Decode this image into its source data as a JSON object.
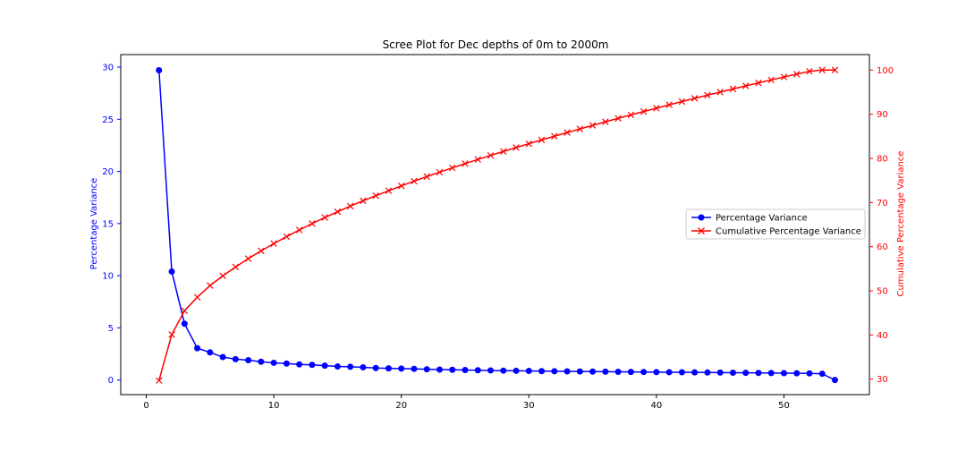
{
  "chart_data": {
    "type": "line",
    "title": "Scree Plot for Dec depths of 0m to 2000m",
    "xlabel": "",
    "ylabel": "Percentage Variance",
    "y2label": "Cumulative Percentage Variance",
    "xlim": [
      -2,
      56.7
    ],
    "ylim": [
      -1.4,
      31.2
    ],
    "y2lim": [
      26.5,
      103.5
    ],
    "xticks": [
      0,
      10,
      20,
      30,
      40,
      50
    ],
    "yticks": [
      0,
      5,
      10,
      15,
      20,
      25,
      30
    ],
    "y2ticks": [
      30,
      40,
      50,
      60,
      70,
      80,
      90,
      100
    ],
    "grid": false,
    "legend_position": "center-right",
    "colors": {
      "primary": "#0000ff",
      "secondary": "#ff0000",
      "axis": "#000000"
    },
    "x": [
      1,
      2,
      3,
      4,
      5,
      6,
      7,
      8,
      9,
      10,
      11,
      12,
      13,
      14,
      15,
      16,
      17,
      18,
      19,
      20,
      21,
      22,
      23,
      24,
      25,
      26,
      27,
      28,
      29,
      30,
      31,
      32,
      33,
      34,
      35,
      36,
      37,
      38,
      39,
      40,
      41,
      42,
      43,
      44,
      45,
      46,
      47,
      48,
      49,
      50,
      51,
      52,
      53,
      54
    ],
    "series": [
      {
        "name": "Percentage Variance",
        "axis": "left",
        "color": "#0000ff",
        "marker": "circle",
        "values": [
          29.7,
          10.4,
          5.4,
          3.05,
          2.65,
          2.2,
          2.0,
          1.9,
          1.75,
          1.65,
          1.58,
          1.5,
          1.45,
          1.38,
          1.3,
          1.27,
          1.22,
          1.15,
          1.12,
          1.1,
          1.07,
          1.03,
          1.0,
          0.98,
          0.96,
          0.94,
          0.92,
          0.9,
          0.88,
          0.87,
          0.85,
          0.84,
          0.83,
          0.82,
          0.81,
          0.8,
          0.79,
          0.78,
          0.77,
          0.76,
          0.75,
          0.74,
          0.73,
          0.72,
          0.71,
          0.7,
          0.69,
          0.68,
          0.67,
          0.66,
          0.65,
          0.64,
          0.6,
          0.0
        ]
      },
      {
        "name": "Cumulative Percentage Variance",
        "axis": "right",
        "color": "#ff0000",
        "marker": "x",
        "values": [
          29.7,
          40.1,
          45.5,
          48.55,
          51.2,
          53.4,
          55.4,
          57.3,
          59.05,
          60.7,
          62.28,
          63.78,
          65.23,
          66.61,
          67.91,
          69.18,
          70.4,
          71.55,
          72.67,
          73.77,
          74.84,
          75.87,
          76.87,
          77.85,
          78.81,
          79.75,
          80.67,
          81.57,
          82.45,
          83.32,
          84.17,
          85.01,
          85.84,
          86.66,
          87.47,
          88.27,
          89.06,
          89.84,
          90.61,
          91.37,
          92.12,
          92.86,
          93.59,
          94.31,
          95.02,
          95.72,
          96.41,
          97.09,
          97.76,
          98.42,
          99.07,
          99.71,
          100.0,
          100.0
        ]
      }
    ]
  }
}
